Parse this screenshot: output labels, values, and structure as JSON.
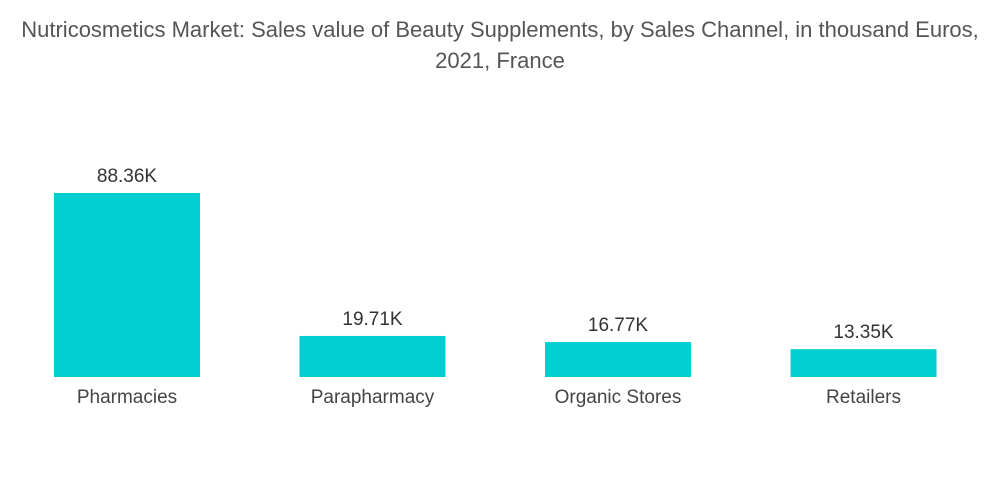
{
  "chart_data": {
    "type": "bar",
    "title": "Nutricosmetics Market: Sales value of Beauty Supplements, by Sales Channel, in thousand Euros, 2021, France",
    "xlabel": "",
    "ylabel": "",
    "categories": [
      "Pharmacies",
      "Parapharmacy",
      "Organic Stores",
      "Retailers"
    ],
    "values": [
      88.36,
      19.71,
      16.77,
      13.35
    ],
    "value_labels": [
      "88.36K",
      "19.71K",
      "16.77K",
      "13.35K"
    ],
    "bar_color": "#00CED1",
    "ylim": [
      0,
      88.36
    ],
    "grid": false,
    "legend": "none"
  }
}
